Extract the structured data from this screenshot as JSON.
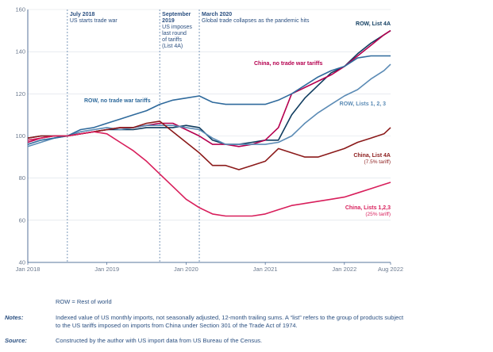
{
  "chart_data": {
    "type": "line",
    "title": "",
    "xlabel": "",
    "ylabel": "",
    "ylim": [
      40,
      160
    ],
    "yticks": [
      40,
      60,
      80,
      100,
      120,
      140,
      160
    ],
    "x_tick_labels": [
      {
        "x": "2018-01",
        "label": "Jan 2018"
      },
      {
        "x": "2019-01",
        "label": "Jan 2019"
      },
      {
        "x": "2020-01",
        "label": "Jan 2020"
      },
      {
        "x": "2021-01",
        "label": "Jan 2021"
      },
      {
        "x": "2022-01",
        "label": "Jan 2022"
      },
      {
        "x": "2022-08",
        "label": "Aug 2022"
      }
    ],
    "x": [
      "2018-01",
      "2018-03",
      "2018-05",
      "2018-07",
      "2018-09",
      "2018-11",
      "2019-01",
      "2019-03",
      "2019-05",
      "2019-07",
      "2019-09",
      "2019-11",
      "2020-01",
      "2020-03",
      "2020-05",
      "2020-07",
      "2020-09",
      "2020-11",
      "2021-01",
      "2021-03",
      "2021-05",
      "2021-07",
      "2021-09",
      "2021-11",
      "2022-01",
      "2022-03",
      "2022-05",
      "2022-07",
      "2022-08"
    ],
    "grid": true,
    "series": [
      {
        "name": "ROW, List 4A",
        "color": "#0f3c5f",
        "values": [
          99,
          100,
          100,
          100,
          101,
          102,
          103,
          103,
          103,
          104,
          104,
          104,
          105,
          104,
          98,
          96,
          96,
          97,
          98,
          98,
          110,
          118,
          124,
          130,
          133,
          139,
          144,
          148,
          150
        ]
      },
      {
        "name": "China, no trade war tariffs",
        "color": "#b5004f",
        "values": [
          97,
          99,
          100,
          100,
          101,
          102,
          103,
          104,
          104,
          105,
          106,
          106,
          103,
          100,
          96,
          96,
          95,
          96,
          98,
          104,
          120,
          123,
          126,
          129,
          133,
          138,
          143,
          148,
          150
        ]
      },
      {
        "name": "ROW, Lists 1, 2, 3",
        "color": "#5b8bb5",
        "values": [
          95,
          97,
          99,
          100,
          102,
          103,
          104,
          103,
          104,
          105,
          105,
          105,
          104,
          103,
          99,
          96,
          96,
          96,
          96,
          97,
          100,
          106,
          111,
          115,
          119,
          122,
          127,
          131,
          134
        ]
      },
      {
        "name": "ROW, no trade war tariffs",
        "color": "#2f6a9c",
        "values": [
          96,
          98,
          99,
          100,
          103,
          104,
          106,
          108,
          110,
          112,
          115,
          117,
          118,
          119,
          116,
          115,
          115,
          115,
          115,
          117,
          120,
          124,
          128,
          131,
          133,
          137,
          138,
          138,
          138
        ]
      },
      {
        "name": "China, List 4A",
        "color": "#8b1a1a",
        "subtitle": "(7.5% tariff)",
        "values": [
          99,
          100,
          100,
          100,
          101,
          102,
          103,
          104,
          104,
          106,
          107,
          102,
          97,
          92,
          86,
          86,
          84,
          86,
          88,
          94,
          92,
          90,
          90,
          92,
          94,
          97,
          99,
          101,
          104
        ]
      },
      {
        "name": "China, Lists 1,2,3",
        "color": "#d81e5b",
        "subtitle": "(25% tariff)",
        "values": [
          98,
          99,
          100,
          100,
          101,
          102,
          101,
          97,
          93,
          88,
          82,
          76,
          70,
          66,
          63,
          62,
          62,
          62,
          63,
          65,
          67,
          68,
          69,
          70,
          71,
          73,
          75,
          77,
          78
        ]
      }
    ],
    "annotations": [
      {
        "x": "2018-07",
        "title": "July 2018",
        "text": [
          "US starts trade war"
        ]
      },
      {
        "x": "2019-09",
        "title": "September 2019",
        "text": [
          "US imposes",
          "last round",
          "of tariffs",
          "(List 4A)"
        ]
      },
      {
        "x": "2020-03",
        "title": "March 2020",
        "text": [
          "Global trade collapses as the pandemic hits"
        ]
      }
    ]
  },
  "footnotes": {
    "row_note": "ROW = Rest of world",
    "notes_key": "Notes:",
    "notes_text": "Indexed value of US monthly imports, not seasonally adjusted, 12-month trailing sums. A “list” refers to the group of products subject to the US tariffs imposed on imports from China under Section 301 of the Trade Act of 1974.",
    "source_key": "Source:",
    "source_text": "Constructed by the author with US import data from US Bureau of the Census."
  }
}
